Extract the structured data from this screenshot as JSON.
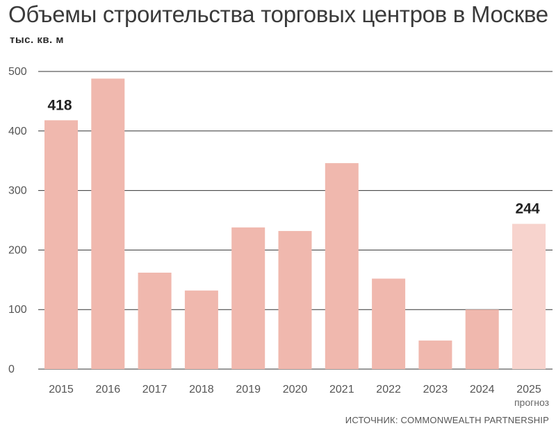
{
  "title": "Объемы строительства торговых центров в Москве",
  "unit": "тыс. кв. м",
  "source": "ИСТОЧНИК: COMMONWEALTH PARTNERSHIP",
  "colors": {
    "bar": "#f0b8ae",
    "bar_forecast": "#f7d3cd",
    "gridline": "#333333"
  },
  "chart_data": {
    "type": "bar",
    "title": "Объемы строительства торговых центров в Москве",
    "ylabel": "тыс. кв. м",
    "xlabel": "",
    "categories": [
      "2015",
      "2016",
      "2017",
      "2018",
      "2019",
      "2020",
      "2021",
      "2022",
      "2023",
      "2024",
      "2025"
    ],
    "category_sublabels": [
      "",
      "",
      "",
      "",
      "",
      "",
      "",
      "",
      "",
      "",
      "прогноз"
    ],
    "values": [
      418,
      488,
      162,
      132,
      238,
      232,
      346,
      152,
      48,
      100,
      244
    ],
    "forecast": [
      false,
      false,
      false,
      false,
      false,
      false,
      false,
      false,
      false,
      false,
      true
    ],
    "data_labels": [
      "418",
      "",
      "",
      "",
      "",
      "",
      "",
      "",
      "",
      "",
      "244"
    ],
    "ylim": [
      0,
      500
    ],
    "yticks": [
      0,
      100,
      200,
      300,
      400,
      500
    ],
    "grid": true
  }
}
